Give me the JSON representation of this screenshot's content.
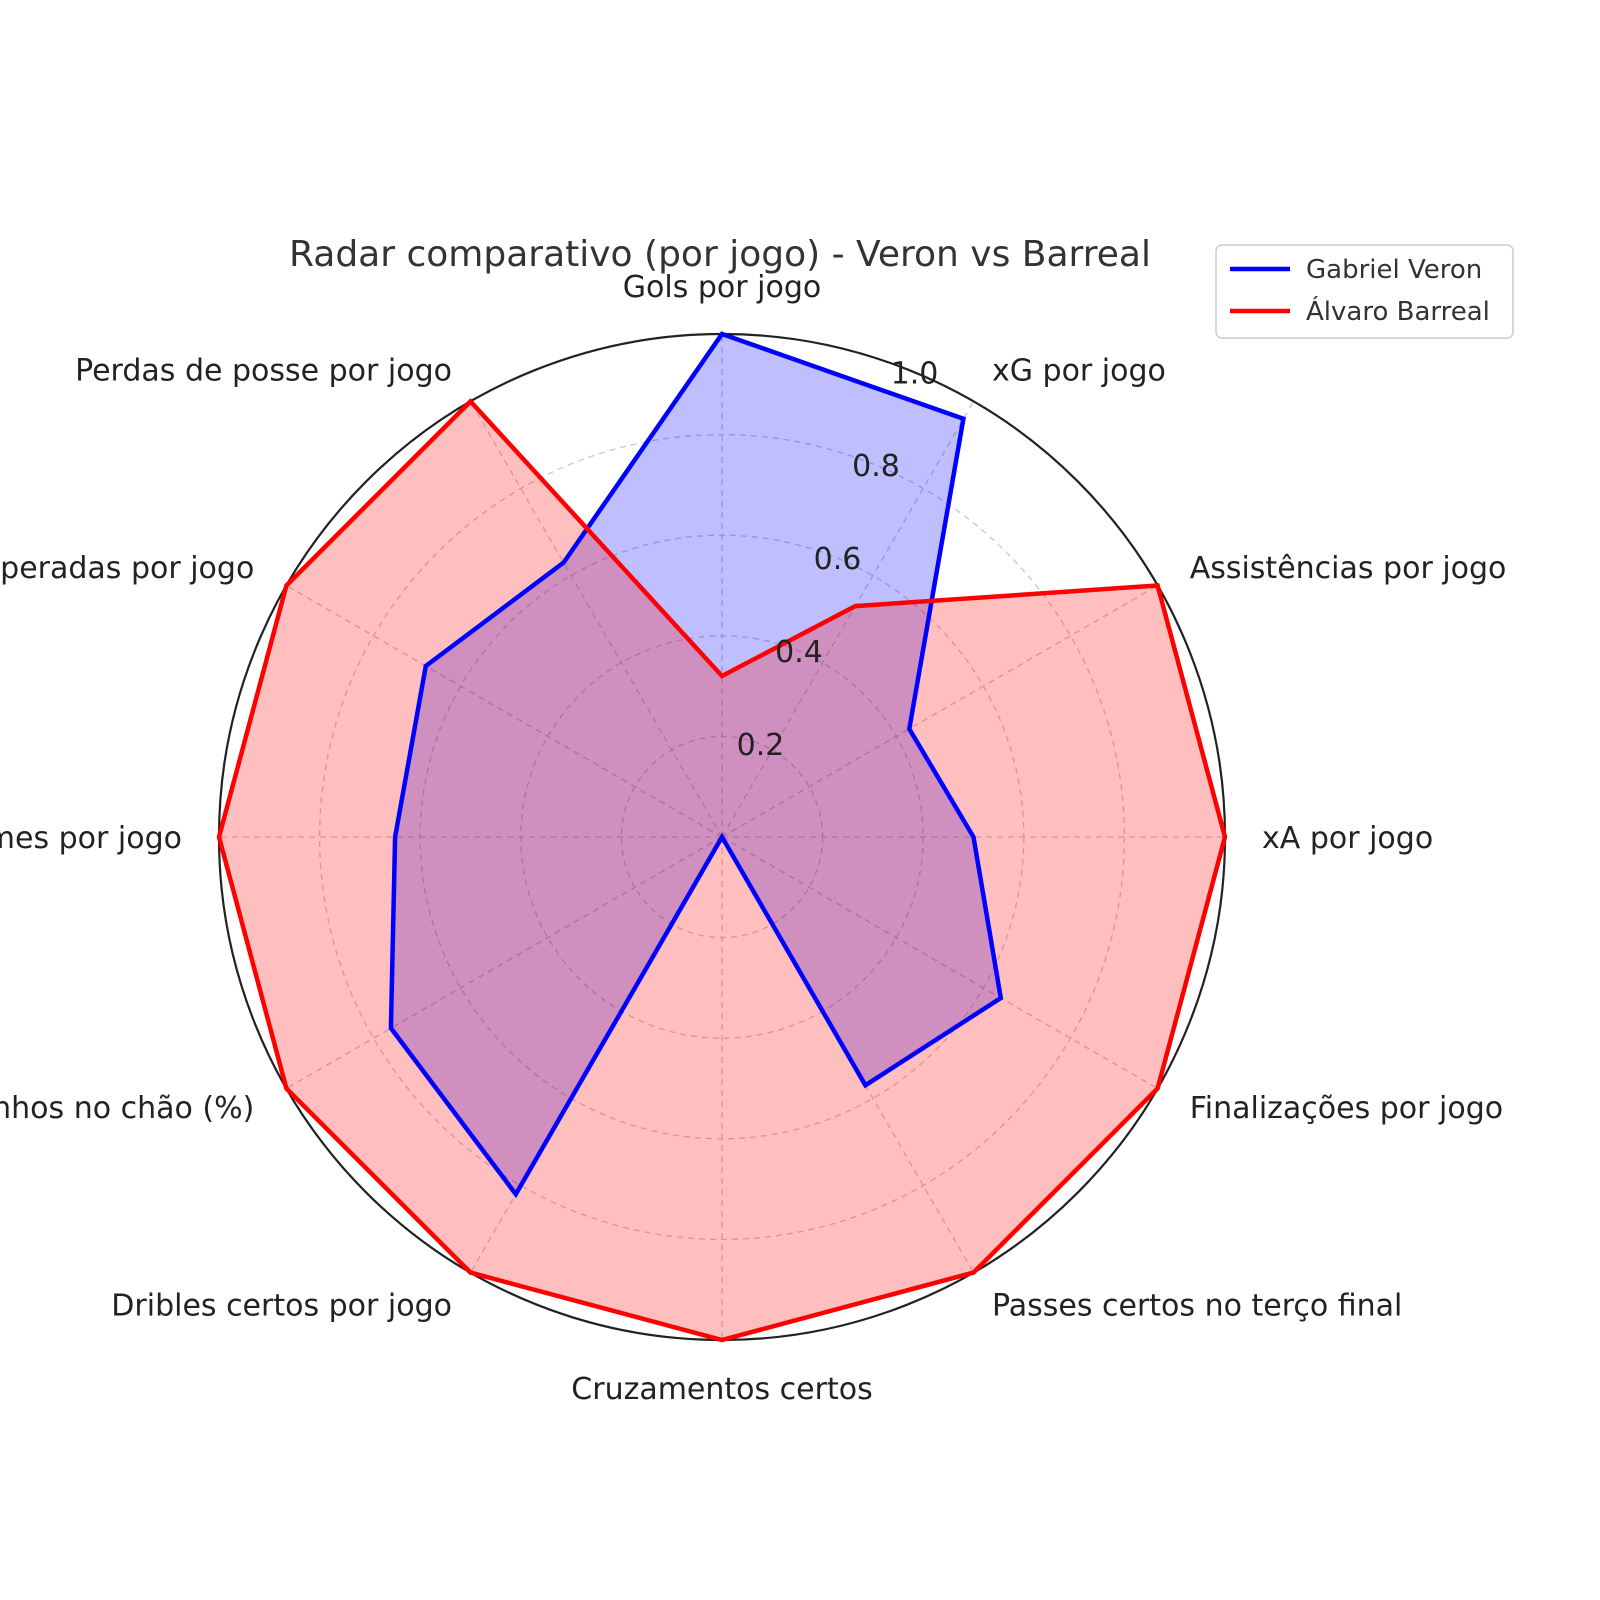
{
  "chart_data": {
    "type": "radar",
    "title": "Radar comparativo (por jogo) - Veron vs Barreal",
    "categories": [
      "Gols por jogo",
      "xG por jogo",
      "Assistências por jogo",
      "xA por jogo",
      "Finalizações por jogo",
      "Passes certos no terço final",
      "Cruzamentos certos",
      "Dribles certos por jogo",
      "Duelos ganhos no chão (%)",
      "Desarmes por jogo",
      "Bolas recuperadas por jogo",
      "Perdas de posse por jogo"
    ],
    "series": [
      {
        "name": "Gabriel Veron",
        "color": "#0000ff",
        "fill": "#0000ff",
        "values": [
          1.0,
          0.96,
          0.43,
          0.5,
          0.64,
          0.57,
          0.0,
          0.82,
          0.76,
          0.65,
          0.68,
          0.63
        ]
      },
      {
        "name": "Álvaro Barreal",
        "color": "#ff0000",
        "fill": "#ff0000",
        "values": [
          0.32,
          0.53,
          1.0,
          1.0,
          1.0,
          1.0,
          1.0,
          1.0,
          1.0,
          1.0,
          1.0,
          1.0
        ]
      }
    ],
    "rlim": [
      0,
      1.0
    ],
    "rticks": [
      "0.2",
      "0.4",
      "0.6",
      "0.8",
      "1.0"
    ],
    "rtick_values": [
      0.2,
      0.4,
      0.6,
      0.8,
      1.0
    ],
    "grid": true,
    "legend_position": "top-right"
  }
}
